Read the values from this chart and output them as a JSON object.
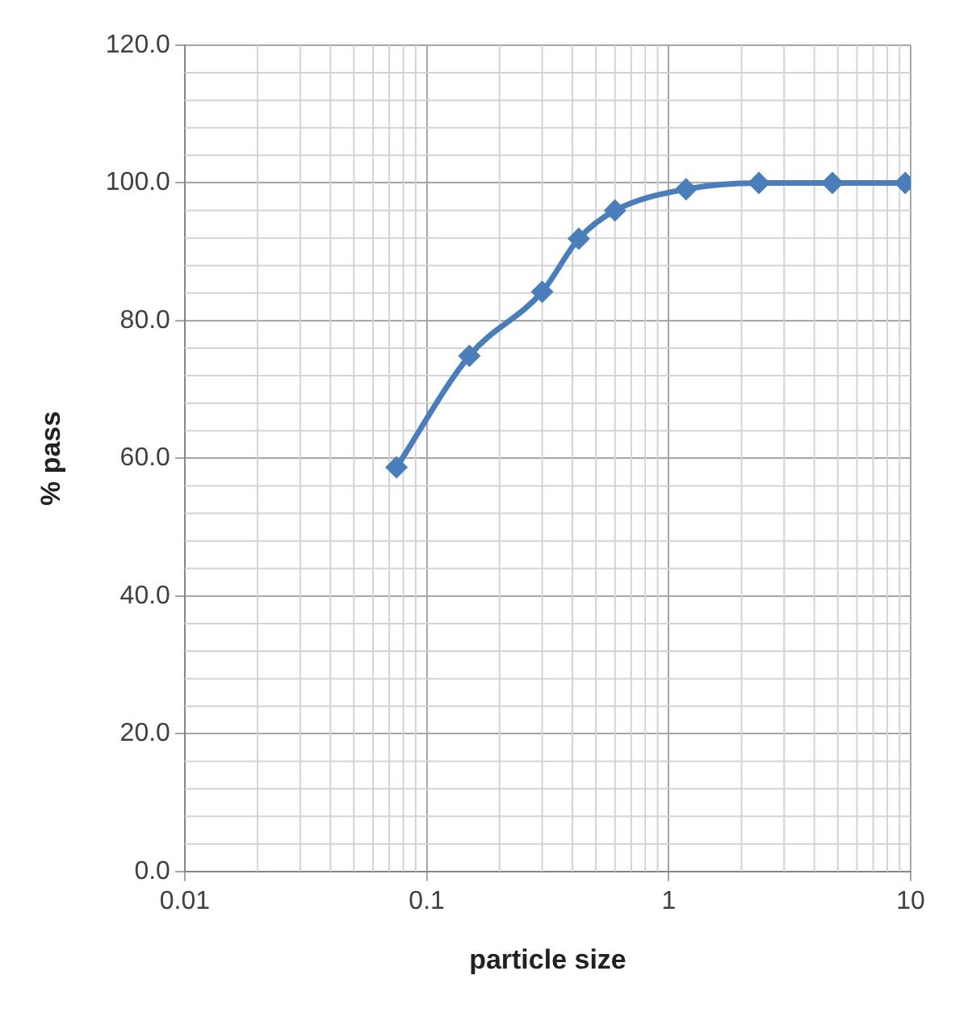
{
  "chart_data": {
    "type": "line",
    "xlabel": "particle size",
    "ylabel": "% pass",
    "x": [
      0.075,
      0.15,
      0.3,
      0.425,
      0.6,
      1.18,
      2.36,
      4.75,
      9.5
    ],
    "series": [
      {
        "color": "#4a7ebb",
        "values": [
          58.7,
          74.9,
          84.2,
          91.9,
          96.0,
          99.1,
          100,
          100,
          100
        ]
      }
    ],
    "log": "x",
    "xlim": [
      0.01,
      10
    ],
    "xticks": [
      0.01,
      0.1,
      1,
      10
    ],
    "ylim": [
      0,
      120
    ],
    "yticks": [
      {
        "value": 0,
        "label": "0.0"
      },
      {
        "value": 20,
        "label": "20.0"
      },
      {
        "value": 40,
        "label": "40.0"
      },
      {
        "value": 60,
        "label": "60.0"
      },
      {
        "value": 80,
        "label": "80.0"
      },
      {
        "value": 100,
        "label": "100.0"
      },
      {
        "value": 120,
        "label": "120.0"
      }
    ],
    "grid": true,
    "marker": "diamond",
    "line_style": "solid",
    "legend": false
  }
}
